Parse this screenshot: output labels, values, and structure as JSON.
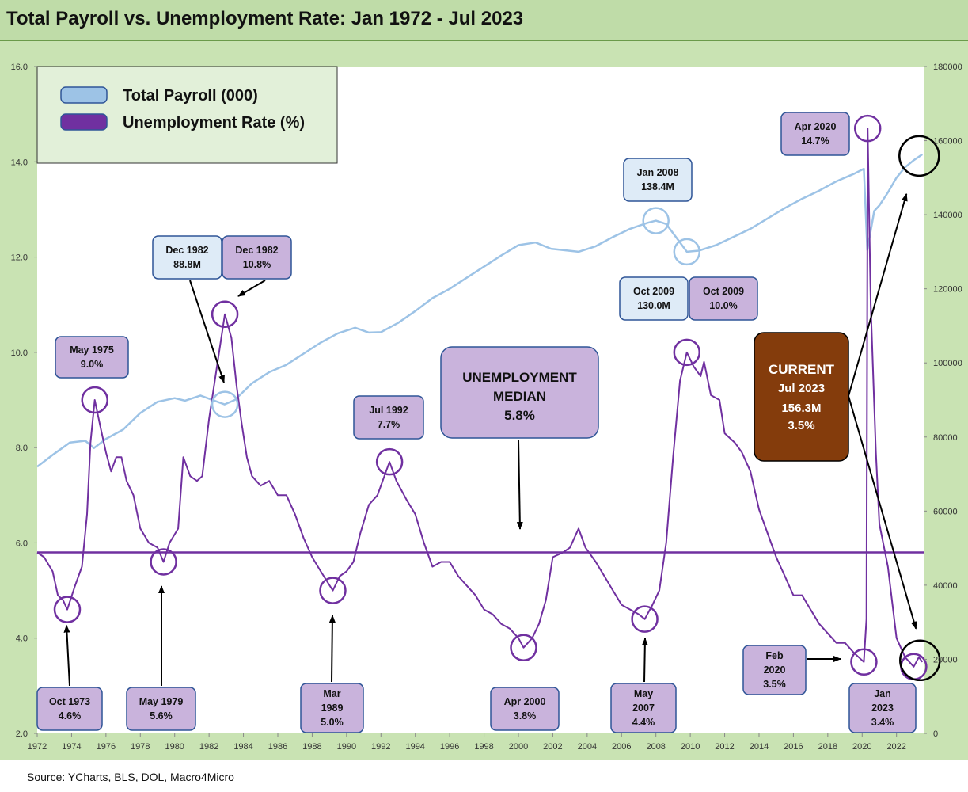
{
  "title": "Total Payroll vs. Unemployment Rate: Jan 1972 - Jul 2023",
  "source": "Source: YCharts, BLS, DOL, Macro4Micro",
  "colors": {
    "background": "#c9e3b3",
    "plot": "#ffffff",
    "payroll": "#9dc3e6",
    "unemployment": "#7030a0",
    "callout_purple": "#c9b3dc",
    "callout_blue": "#deebf7",
    "current_box": "#843c0c"
  },
  "chart_data": {
    "type": "line",
    "x_range": [
      1972,
      2023.58
    ],
    "x_ticks": [
      "1972",
      "1974",
      "1976",
      "1978",
      "1980",
      "1982",
      "1984",
      "1986",
      "1988",
      "1990",
      "1992",
      "1994",
      "1996",
      "1998",
      "2000",
      "2002",
      "2004",
      "2006",
      "2008",
      "2010",
      "2012",
      "2014",
      "2016",
      "2018",
      "2020",
      "2022"
    ],
    "y_left": {
      "range": [
        2.0,
        16.0
      ],
      "ticks": [
        "2.0",
        "4.0",
        "6.0",
        "8.0",
        "10.0",
        "12.0",
        "14.0",
        "16.0"
      ]
    },
    "y_right": {
      "range": [
        0,
        180000
      ],
      "ticks": [
        "0",
        "20000",
        "40000",
        "60000",
        "80000",
        "100000",
        "120000",
        "140000",
        "160000",
        "180000"
      ]
    },
    "legend": {
      "position": "top-left",
      "items": [
        {
          "label": "Total Payroll (000)",
          "color": "#9dc3e6"
        },
        {
          "label": "Unemployment Rate (%)",
          "color": "#7030a0"
        }
      ]
    },
    "series": [
      {
        "name": "Total Payroll (000)",
        "axis": "right",
        "points": [
          [
            1972.0,
            72000
          ],
          [
            1973.0,
            75500
          ],
          [
            1973.9,
            78500
          ],
          [
            1974.8,
            79000
          ],
          [
            1975.3,
            77000
          ],
          [
            1976.0,
            79500
          ],
          [
            1977.0,
            82000
          ],
          [
            1978.0,
            86500
          ],
          [
            1979.0,
            89500
          ],
          [
            1980.0,
            90500
          ],
          [
            1980.6,
            89800
          ],
          [
            1981.5,
            91200
          ],
          [
            1982.9,
            88800
          ],
          [
            1983.5,
            90000
          ],
          [
            1984.5,
            94500
          ],
          [
            1985.5,
            97500
          ],
          [
            1986.5,
            99500
          ],
          [
            1987.5,
            102500
          ],
          [
            1988.5,
            105500
          ],
          [
            1989.5,
            108000
          ],
          [
            1990.5,
            109500
          ],
          [
            1991.3,
            108200
          ],
          [
            1992.0,
            108300
          ],
          [
            1993.0,
            110800
          ],
          [
            1994.0,
            114000
          ],
          [
            1995.0,
            117500
          ],
          [
            1996.0,
            120000
          ],
          [
            1997.0,
            123000
          ],
          [
            1998.0,
            126000
          ],
          [
            1999.0,
            129000
          ],
          [
            2000.0,
            131800
          ],
          [
            2001.0,
            132500
          ],
          [
            2001.9,
            130800
          ],
          [
            2003.5,
            130000
          ],
          [
            2004.5,
            131500
          ],
          [
            2005.5,
            134000
          ],
          [
            2006.5,
            136200
          ],
          [
            2007.5,
            137800
          ],
          [
            2008.0,
            138400
          ],
          [
            2008.6,
            137500
          ],
          [
            2009.8,
            130000
          ],
          [
            2010.5,
            130300
          ],
          [
            2011.5,
            131800
          ],
          [
            2012.5,
            134000
          ],
          [
            2013.5,
            136200
          ],
          [
            2014.5,
            139000
          ],
          [
            2015.5,
            141800
          ],
          [
            2016.5,
            144300
          ],
          [
            2017.5,
            146500
          ],
          [
            2018.5,
            149000
          ],
          [
            2019.5,
            151000
          ],
          [
            2020.1,
            152400
          ],
          [
            2020.3,
            130500
          ],
          [
            2020.7,
            141000
          ],
          [
            2021.0,
            142500
          ],
          [
            2021.5,
            146000
          ],
          [
            2022.0,
            150000
          ],
          [
            2022.5,
            152800
          ],
          [
            2023.0,
            154700
          ],
          [
            2023.5,
            156300
          ]
        ]
      },
      {
        "name": "Unemployment Rate (%)",
        "axis": "left",
        "points": [
          [
            1972.0,
            5.8
          ],
          [
            1972.4,
            5.7
          ],
          [
            1972.9,
            5.4
          ],
          [
            1973.2,
            4.9
          ],
          [
            1973.5,
            4.8
          ],
          [
            1973.75,
            4.6
          ],
          [
            1974.2,
            5.1
          ],
          [
            1974.6,
            5.5
          ],
          [
            1974.9,
            6.6
          ],
          [
            1975.1,
            8.1
          ],
          [
            1975.35,
            9.0
          ],
          [
            1975.7,
            8.4
          ],
          [
            1976.0,
            7.9
          ],
          [
            1976.3,
            7.5
          ],
          [
            1976.6,
            7.8
          ],
          [
            1976.9,
            7.8
          ],
          [
            1977.2,
            7.3
          ],
          [
            1977.6,
            7.0
          ],
          [
            1978.0,
            6.3
          ],
          [
            1978.5,
            6.0
          ],
          [
            1979.0,
            5.9
          ],
          [
            1979.35,
            5.6
          ],
          [
            1979.7,
            6.0
          ],
          [
            1980.2,
            6.3
          ],
          [
            1980.5,
            7.8
          ],
          [
            1980.9,
            7.4
          ],
          [
            1981.3,
            7.3
          ],
          [
            1981.6,
            7.4
          ],
          [
            1982.0,
            8.6
          ],
          [
            1982.5,
            9.8
          ],
          [
            1982.92,
            10.8
          ],
          [
            1983.3,
            10.3
          ],
          [
            1983.6,
            9.3
          ],
          [
            1983.9,
            8.5
          ],
          [
            1984.2,
            7.8
          ],
          [
            1984.5,
            7.4
          ],
          [
            1985.0,
            7.2
          ],
          [
            1985.5,
            7.3
          ],
          [
            1986.0,
            7.0
          ],
          [
            1986.5,
            7.0
          ],
          [
            1987.0,
            6.6
          ],
          [
            1987.5,
            6.1
          ],
          [
            1988.0,
            5.7
          ],
          [
            1988.5,
            5.4
          ],
          [
            1989.2,
            5.0
          ],
          [
            1989.6,
            5.3
          ],
          [
            1990.0,
            5.4
          ],
          [
            1990.4,
            5.6
          ],
          [
            1990.8,
            6.2
          ],
          [
            1991.3,
            6.8
          ],
          [
            1991.8,
            7.0
          ],
          [
            1992.5,
            7.7
          ],
          [
            1992.9,
            7.3
          ],
          [
            1993.5,
            6.9
          ],
          [
            1994.0,
            6.6
          ],
          [
            1994.5,
            6.0
          ],
          [
            1995.0,
            5.5
          ],
          [
            1995.5,
            5.6
          ],
          [
            1996.0,
            5.6
          ],
          [
            1996.5,
            5.3
          ],
          [
            1997.0,
            5.1
          ],
          [
            1997.5,
            4.9
          ],
          [
            1998.0,
            4.6
          ],
          [
            1998.5,
            4.5
          ],
          [
            1999.0,
            4.3
          ],
          [
            1999.5,
            4.2
          ],
          [
            2000.0,
            4.0
          ],
          [
            2000.3,
            3.8
          ],
          [
            2000.8,
            4.0
          ],
          [
            2001.2,
            4.3
          ],
          [
            2001.6,
            4.8
          ],
          [
            2002.0,
            5.7
          ],
          [
            2002.6,
            5.8
          ],
          [
            2003.0,
            5.9
          ],
          [
            2003.5,
            6.3
          ],
          [
            2003.9,
            5.9
          ],
          [
            2004.5,
            5.6
          ],
          [
            2005.0,
            5.3
          ],
          [
            2005.5,
            5.0
          ],
          [
            2006.0,
            4.7
          ],
          [
            2006.5,
            4.6
          ],
          [
            2007.0,
            4.5
          ],
          [
            2007.35,
            4.4
          ],
          [
            2007.8,
            4.7
          ],
          [
            2008.2,
            5.0
          ],
          [
            2008.6,
            6.0
          ],
          [
            2009.0,
            7.8
          ],
          [
            2009.4,
            9.4
          ],
          [
            2009.8,
            10.0
          ],
          [
            2010.2,
            9.7
          ],
          [
            2010.6,
            9.5
          ],
          [
            2010.8,
            9.8
          ],
          [
            2011.2,
            9.1
          ],
          [
            2011.7,
            9.0
          ],
          [
            2012.0,
            8.3
          ],
          [
            2012.6,
            8.1
          ],
          [
            2013.0,
            7.9
          ],
          [
            2013.5,
            7.5
          ],
          [
            2014.0,
            6.7
          ],
          [
            2014.5,
            6.2
          ],
          [
            2015.0,
            5.7
          ],
          [
            2015.5,
            5.3
          ],
          [
            2016.0,
            4.9
          ],
          [
            2016.5,
            4.9
          ],
          [
            2017.0,
            4.6
          ],
          [
            2017.5,
            4.3
          ],
          [
            2018.0,
            4.1
          ],
          [
            2018.5,
            3.9
          ],
          [
            2019.0,
            3.9
          ],
          [
            2019.5,
            3.7
          ],
          [
            2020.1,
            3.5
          ],
          [
            2020.25,
            4.4
          ],
          [
            2020.32,
            14.7
          ],
          [
            2020.5,
            11.0
          ],
          [
            2020.8,
            7.9
          ],
          [
            2021.0,
            6.4
          ],
          [
            2021.5,
            5.5
          ],
          [
            2022.0,
            4.0
          ],
          [
            2022.5,
            3.6
          ],
          [
            2023.0,
            3.4
          ],
          [
            2023.3,
            3.6
          ],
          [
            2023.5,
            3.5
          ]
        ]
      }
    ],
    "median": {
      "label_line1": "UNEMPLOYMENT",
      "label_line2": "MEDIAN",
      "value_label": "5.8%",
      "value": 5.8
    },
    "annotations": [
      {
        "id": "may1975",
        "lines": [
          "May 1975",
          "9.0%"
        ],
        "style": "purple",
        "target": [
          1975.35,
          9.0
        ],
        "axis": "left"
      },
      {
        "id": "oct1973",
        "lines": [
          "Oct 1973",
          "4.6%"
        ],
        "style": "purple",
        "target": [
          1973.75,
          4.6
        ],
        "axis": "left"
      },
      {
        "id": "may1979",
        "lines": [
          "May 1979",
          "5.6%"
        ],
        "style": "purple",
        "target": [
          1979.35,
          5.6
        ],
        "axis": "left"
      },
      {
        "id": "dec1982p",
        "lines": [
          "Dec 1982",
          "88.8M"
        ],
        "style": "blue",
        "target": [
          1982.92,
          88800
        ],
        "axis": "right"
      },
      {
        "id": "dec1982u",
        "lines": [
          "Dec 1982",
          "10.8%"
        ],
        "style": "purple",
        "target": [
          1982.92,
          10.8
        ],
        "axis": "left"
      },
      {
        "id": "mar1989",
        "lines": [
          "Mar",
          "1989",
          "5.0%"
        ],
        "style": "purple",
        "target": [
          1989.2,
          5.0
        ],
        "axis": "left"
      },
      {
        "id": "jul1992",
        "lines": [
          "Jul 1992",
          "7.7%"
        ],
        "style": "purple",
        "target": [
          1992.5,
          7.7
        ],
        "axis": "left"
      },
      {
        "id": "apr2000",
        "lines": [
          "Apr 2000",
          "3.8%"
        ],
        "style": "purple",
        "target": [
          2000.3,
          3.8
        ],
        "axis": "left"
      },
      {
        "id": "may2007",
        "lines": [
          "May",
          "2007",
          "4.4%"
        ],
        "style": "purple",
        "target": [
          2007.35,
          4.4
        ],
        "axis": "left"
      },
      {
        "id": "jan2008",
        "lines": [
          "Jan 2008",
          "138.4M"
        ],
        "style": "blue",
        "target": [
          2008.0,
          138400
        ],
        "axis": "right"
      },
      {
        "id": "oct2009p",
        "lines": [
          "Oct 2009",
          "130.0M"
        ],
        "style": "blue",
        "target": [
          2009.8,
          130000
        ],
        "axis": "right"
      },
      {
        "id": "oct2009u",
        "lines": [
          "Oct 2009",
          "10.0%"
        ],
        "style": "purple",
        "target": [
          2009.8,
          10.0
        ],
        "axis": "left"
      },
      {
        "id": "apr2020",
        "lines": [
          "Apr 2020",
          "14.7%"
        ],
        "style": "purple",
        "target": [
          2020.32,
          14.7
        ],
        "axis": "left"
      },
      {
        "id": "feb2020",
        "lines": [
          "Feb",
          "2020",
          "3.5%"
        ],
        "style": "purple",
        "target": [
          2020.1,
          3.5
        ],
        "axis": "left"
      },
      {
        "id": "jan2023",
        "lines": [
          "Jan",
          "2023",
          "3.4%"
        ],
        "style": "purple",
        "target": [
          2023.0,
          3.4
        ],
        "axis": "left"
      }
    ],
    "current": {
      "label": "CURRENT",
      "date": "Jul 2023",
      "payroll": "156.3M",
      "rate": "3.5%"
    }
  }
}
